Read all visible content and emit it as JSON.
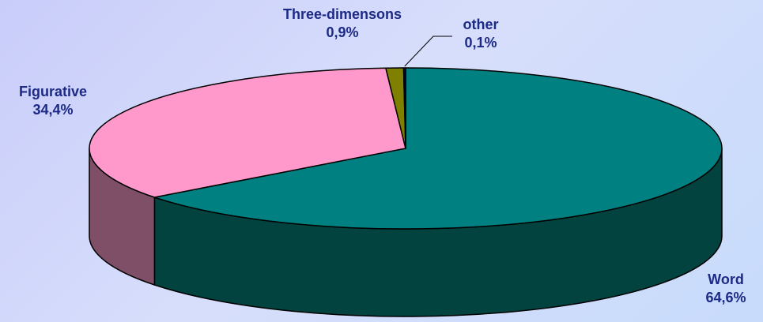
{
  "chart_data": {
    "type": "pie",
    "title": "",
    "slices": [
      {
        "label": "Word",
        "value_label": "64,6%",
        "value": 64.6,
        "color": "#008080",
        "side_color": "#02423f"
      },
      {
        "label": "Figurative",
        "value_label": "34,4%",
        "value": 34.4,
        "color": "#ff99cc",
        "side_color": "#7e4f67"
      },
      {
        "label": "Three-dimensons",
        "value_label": "0,9%",
        "value": 0.9,
        "color": "#808000",
        "side_color": "#404000"
      },
      {
        "label": "other",
        "value_label": "0,1%",
        "value": 0.1,
        "color": "#000080",
        "side_color": "#000040"
      }
    ],
    "start_angle_deg": 90,
    "direction": "clockwise",
    "style": "3d"
  }
}
